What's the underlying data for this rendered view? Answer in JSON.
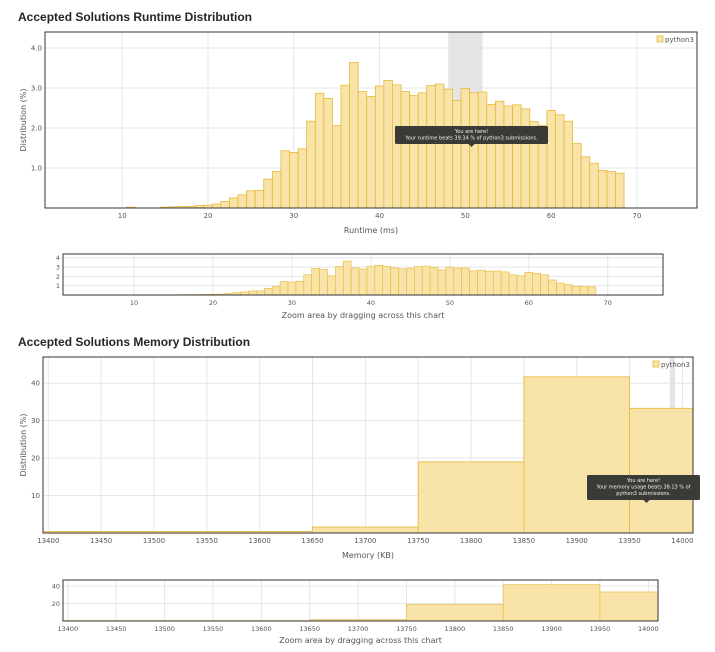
{
  "sections": {
    "runtime_title": "Accepted Solutions Runtime Distribution",
    "memory_title": "Accepted Solutions Memory Distribution"
  },
  "footer_text": "",
  "colors": {
    "bar_fill": "#f8e3a8",
    "bar_stroke": "#e8b936",
    "highlight": "#e1e1e1",
    "tooltip_bg": "#3a3a36"
  },
  "chart_data": [
    {
      "id": "runtime-main",
      "type": "bar",
      "xlabel": "Runtime (ms)",
      "ylabel": "Distribution (%)",
      "xlim": [
        1,
        77
      ],
      "ylim": [
        0,
        4.4
      ],
      "xticks": [
        10,
        20,
        30,
        40,
        50,
        60,
        70
      ],
      "yticks": [
        1.0,
        2.0,
        3.0,
        4.0
      ],
      "ytick_labels": [
        "1.0",
        "2.0",
        "3.0",
        "4.0"
      ],
      "grid": true,
      "legend": "top-right",
      "bin_width": 1,
      "series": [
        {
          "name": "python3",
          "x": [
            11,
            15,
            16,
            17,
            18,
            19,
            20,
            21,
            22,
            23,
            24,
            25,
            26,
            27,
            28,
            29,
            30,
            31,
            32,
            33,
            34,
            35,
            36,
            37,
            38,
            39,
            40,
            41,
            42,
            43,
            44,
            45,
            46,
            47,
            48,
            49,
            50,
            51,
            52,
            53,
            54,
            55,
            56,
            57,
            58,
            59,
            60,
            61,
            62,
            63,
            64,
            65,
            66,
            67,
            68
          ],
          "values": [
            0.02,
            0.02,
            0.03,
            0.04,
            0.04,
            0.06,
            0.07,
            0.1,
            0.16,
            0.25,
            0.33,
            0.43,
            0.44,
            0.72,
            0.91,
            1.43,
            1.39,
            1.48,
            2.17,
            2.87,
            2.74,
            2.06,
            3.07,
            3.64,
            2.91,
            2.79,
            3.05,
            3.19,
            3.08,
            2.91,
            2.81,
            2.88,
            3.06,
            3.1,
            2.97,
            2.69,
            2.99,
            2.88,
            2.9,
            2.59,
            2.67,
            2.55,
            2.58,
            2.48,
            2.16,
            2.06,
            2.44,
            2.33,
            2.17,
            1.61,
            1.28,
            1.12,
            0.94,
            0.91,
            0.87
          ]
        }
      ],
      "highlight_range": [
        48,
        52
      ],
      "tooltip": {
        "line1": "You are here!",
        "line2": "Your runtime beats 39.34 % of python3 submissions."
      }
    },
    {
      "id": "runtime-zoom",
      "type": "bar",
      "xlabel": "Zoom area by dragging across this chart",
      "xlim": [
        1,
        77
      ],
      "ylim": [
        0,
        4.4
      ],
      "xticks": [
        10,
        20,
        30,
        40,
        50,
        60,
        70
      ],
      "yticks": [
        1,
        2,
        3,
        4
      ],
      "ytick_labels": [
        "1",
        "2",
        "3",
        "4"
      ],
      "grid": true,
      "bin_width": 1,
      "series_ref": "runtime-main"
    },
    {
      "id": "memory-main",
      "type": "bar",
      "xlabel": "Memory (KB)",
      "ylabel": "Distribution (%)",
      "xlim": [
        13395,
        14010
      ],
      "ylim": [
        0,
        47
      ],
      "xticks": [
        13400,
        13450,
        13500,
        13550,
        13600,
        13650,
        13700,
        13750,
        13800,
        13850,
        13900,
        13950,
        14000
      ],
      "yticks": [
        10,
        20,
        30,
        40
      ],
      "ytick_labels": [
        "10",
        "20",
        "30",
        "40"
      ],
      "grid": true,
      "legend": "top-right",
      "series": [
        {
          "name": "python3",
          "x0": [
            13395,
            13650,
            13750,
            13850,
            13950
          ],
          "x1": [
            13650,
            13750,
            13850,
            13950,
            14010
          ],
          "values": [
            0.4,
            1.6,
            19.0,
            41.7,
            33.3
          ]
        }
      ],
      "highlight_range": [
        13988,
        13993
      ],
      "tooltip": {
        "line1": "You are here!",
        "line2": "Your memory usage beats 38.13 % of",
        "line3": "python3 submissions."
      }
    },
    {
      "id": "memory-zoom",
      "type": "bar",
      "xlabel": "Zoom area by dragging across this chart",
      "xlim": [
        13395,
        14010
      ],
      "ylim": [
        0,
        47
      ],
      "xticks": [
        13400,
        13450,
        13500,
        13550,
        13600,
        13650,
        13700,
        13750,
        13800,
        13850,
        13900,
        13950,
        14000
      ],
      "yticks": [
        20,
        40
      ],
      "ytick_labels": [
        "20",
        "40"
      ],
      "grid": true,
      "series_ref": "memory-main"
    }
  ]
}
